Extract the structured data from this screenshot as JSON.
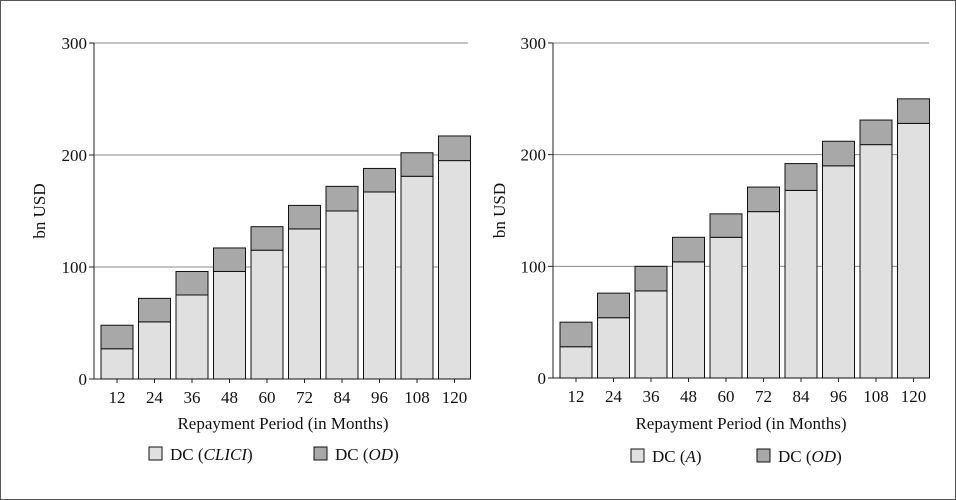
{
  "chart_data": [
    {
      "type": "bar",
      "stacked": true,
      "ylabel": "bn USD",
      "xlabel": "Repayment Period (in Months)",
      "ylim": [
        0,
        300
      ],
      "yticks": [
        0,
        100,
        200,
        300
      ],
      "grid": "horizontal",
      "categories": [
        "12",
        "24",
        "36",
        "48",
        "60",
        "72",
        "84",
        "96",
        "108",
        "120"
      ],
      "series": [
        {
          "name": "CLICI",
          "color": "#e0e0e0",
          "values": [
            27,
            51,
            75,
            96,
            115,
            134,
            150,
            167,
            181,
            195
          ]
        },
        {
          "name": "OD",
          "color": "#a8a8a8",
          "values": [
            21,
            21,
            21,
            21,
            21,
            21,
            22,
            21,
            21,
            22
          ]
        }
      ],
      "legend": [
        {
          "prefix": "DC (",
          "italic": "CLICI",
          "suffix": ")",
          "color": "#e0e0e0"
        },
        {
          "prefix": "DC (",
          "italic": "OD",
          "suffix": ")",
          "color": "#a8a8a8"
        }
      ]
    },
    {
      "type": "bar",
      "stacked": true,
      "ylabel": "bn USD",
      "xlabel": "Repayment Period (in Months)",
      "ylim": [
        0,
        300
      ],
      "yticks": [
        0,
        100,
        200,
        300
      ],
      "grid": "horizontal",
      "categories": [
        "12",
        "24",
        "36",
        "48",
        "60",
        "72",
        "84",
        "96",
        "108",
        "120"
      ],
      "series": [
        {
          "name": "A",
          "color": "#e0e0e0",
          "values": [
            28,
            54,
            78,
            104,
            126,
            149,
            168,
            190,
            209,
            228
          ]
        },
        {
          "name": "OD",
          "color": "#a8a8a8",
          "values": [
            22,
            22,
            22,
            22,
            21,
            22,
            24,
            22,
            22,
            22
          ]
        }
      ],
      "legend": [
        {
          "prefix": "DC (",
          "italic": "A",
          "suffix": ")",
          "color": "#e0e0e0"
        },
        {
          "prefix": "DC (",
          "italic": "OD",
          "suffix": ")",
          "color": "#a8a8a8"
        }
      ]
    }
  ]
}
